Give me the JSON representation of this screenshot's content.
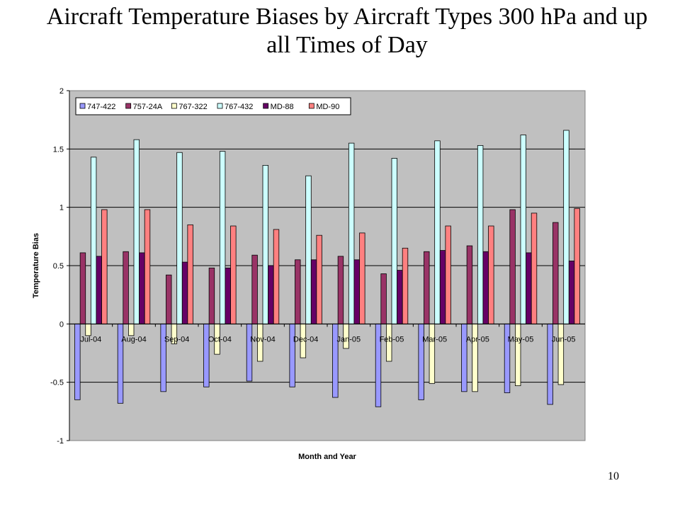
{
  "slide": {
    "title": "Aircraft Temperature Biases by Aircraft Types 300 hPa and up all Times of Day",
    "page_number": "10"
  },
  "chart_data": {
    "type": "bar",
    "title": "",
    "xlabel": "Month and Year",
    "ylabel": "Temperature Bias",
    "ylim": [
      -1,
      2
    ],
    "yticks": [
      -1,
      -0.5,
      0,
      0.5,
      1,
      1.5,
      2
    ],
    "ytick_labels": [
      "-1",
      "-0.5",
      "0",
      "0.5",
      "1",
      "1.5",
      "2"
    ],
    "grid": true,
    "legend_position": "top-left",
    "plot_background": "#c0c0c0",
    "categories": [
      "Jul-04",
      "Aug-04",
      "Sep-04",
      "Oct-04",
      "Nov-04",
      "Dec-04",
      "Jan-05",
      "Feb-05",
      "Mar-05",
      "Apr-05",
      "May-05",
      "Jun-05"
    ],
    "series": [
      {
        "name": "747-422",
        "color": "#9999ff",
        "values": [
          -0.65,
          -0.68,
          -0.58,
          -0.54,
          -0.49,
          -0.54,
          -0.63,
          -0.71,
          -0.65,
          -0.58,
          -0.59,
          -0.69
        ]
      },
      {
        "name": "757-24A",
        "color": "#993366",
        "values": [
          0.61,
          0.62,
          0.42,
          0.48,
          0.59,
          0.55,
          0.58,
          0.43,
          0.62,
          0.67,
          0.98,
          0.87
        ]
      },
      {
        "name": "767-322",
        "color": "#ffffcc",
        "values": [
          -0.1,
          -0.1,
          -0.17,
          -0.26,
          -0.32,
          -0.29,
          -0.21,
          -0.32,
          -0.51,
          -0.58,
          -0.53,
          -0.52
        ]
      },
      {
        "name": "767-432",
        "color": "#ccffff",
        "values": [
          1.43,
          1.58,
          1.47,
          1.48,
          1.36,
          1.27,
          1.55,
          1.42,
          1.57,
          1.53,
          1.62,
          1.66
        ]
      },
      {
        "name": "MD-88",
        "color": "#660066",
        "values": [
          0.58,
          0.61,
          0.53,
          0.48,
          0.5,
          0.55,
          0.55,
          0.46,
          0.63,
          0.62,
          0.61,
          0.54
        ]
      },
      {
        "name": "MD-90",
        "color": "#ff8080",
        "values": [
          0.98,
          0.98,
          0.85,
          0.84,
          0.81,
          0.76,
          0.78,
          0.65,
          0.84,
          0.84,
          0.95,
          0.99
        ]
      }
    ]
  }
}
